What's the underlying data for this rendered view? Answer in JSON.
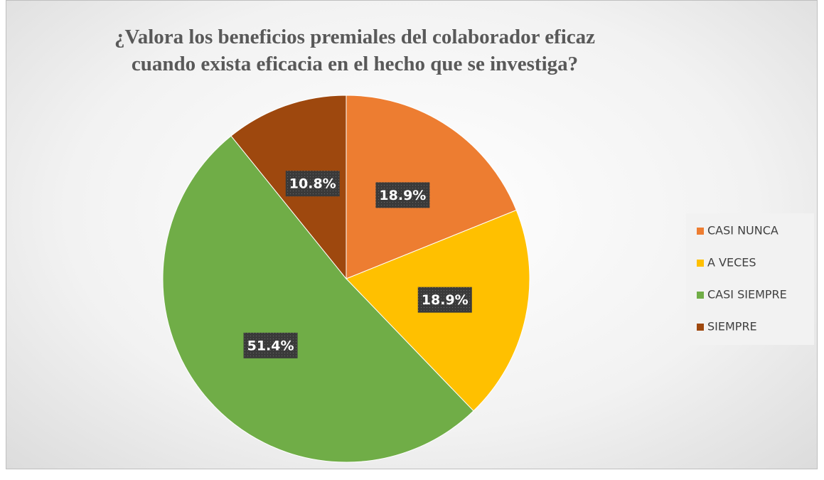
{
  "chart_data": {
    "type": "pie",
    "title": "¿Valora los beneficios premiales del colaborador eficaz cuando exista eficacia en el hecho que se investiga?",
    "categories": [
      "CASI NUNCA",
      "A VECES",
      "CASI SIEMPRE",
      "SIEMPRE"
    ],
    "values": [
      18.9,
      18.9,
      51.4,
      10.8
    ],
    "value_labels": [
      "18.9%",
      "18.9%",
      "51.4%",
      "10.8%"
    ],
    "colors": [
      "#ED7D31",
      "#FFC000",
      "#70AD47",
      "#9E480E"
    ],
    "legend": "right"
  }
}
